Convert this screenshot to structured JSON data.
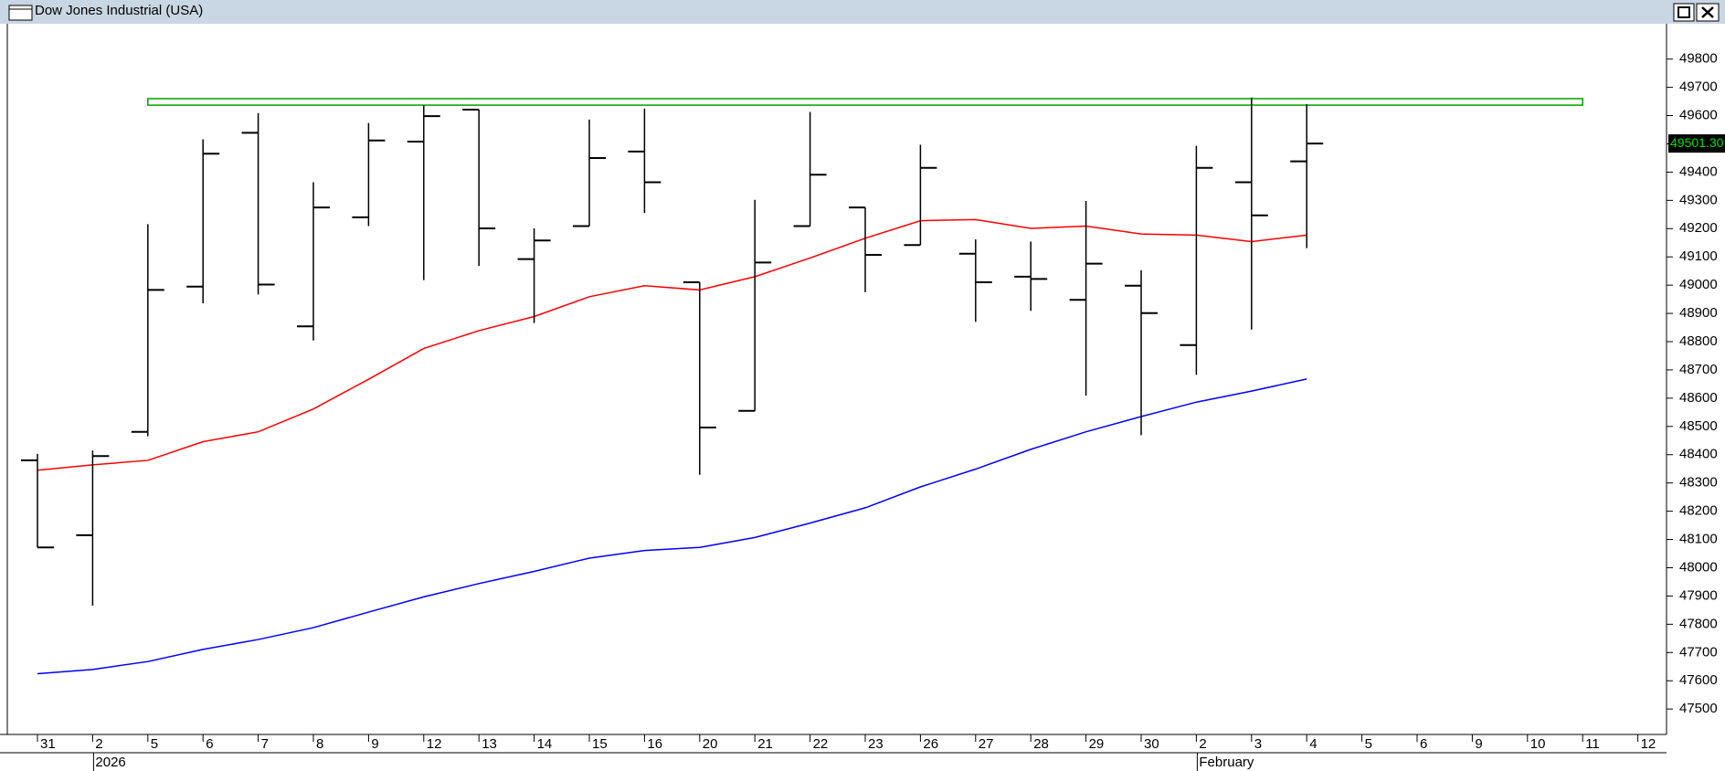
{
  "chart_data": {
    "type": "ohlc",
    "title": "Dow Jones Industrial (USA)",
    "categories": [
      "31",
      "2",
      "5",
      "6",
      "7",
      "8",
      "9",
      "12",
      "13",
      "14",
      "15",
      "16",
      "20",
      "21",
      "22",
      "23",
      "26",
      "27",
      "28",
      "29",
      "30",
      "2",
      "3",
      "4",
      "5",
      "6",
      "9",
      "10",
      "11",
      "12"
    ],
    "categories_row2": [
      null,
      "2026",
      null,
      null,
      null,
      null,
      null,
      null,
      null,
      null,
      null,
      null,
      null,
      null,
      null,
      null,
      null,
      null,
      null,
      null,
      null,
      "February",
      null,
      null,
      null,
      null,
      null,
      null,
      null,
      null
    ],
    "open": [
      48380,
      48115,
      48481,
      48995,
      49539,
      48854,
      49240,
      49508,
      49621,
      49092,
      49209,
      49473,
      49010,
      48555,
      49209,
      49275,
      49142,
      49111,
      49030,
      48948,
      48998,
      48788,
      49364,
      49438,
      null,
      null,
      null,
      null,
      null,
      null
    ],
    "high": [
      48403,
      48415,
      49216,
      49516,
      49609,
      49364,
      49574,
      49637,
      49621,
      49201,
      49586,
      49625,
      49010,
      49302,
      49613,
      49275,
      49497,
      49162,
      49154,
      49298,
      49053,
      49493,
      49664,
      49640,
      null,
      null,
      null,
      null,
      null,
      null
    ],
    "low": [
      48072,
      47866,
      48465,
      48936,
      48967,
      48804,
      49209,
      49018,
      49068,
      48866,
      49209,
      49255,
      48329,
      48555,
      49209,
      48975,
      49142,
      48870,
      48909,
      48609,
      48469,
      48683,
      48843,
      49131,
      null,
      null,
      null,
      null,
      null,
      null
    ],
    "close": [
      48072,
      48395,
      48983,
      49465,
      49002,
      49275,
      49512,
      49598,
      49201,
      49158,
      49450,
      49364,
      48496,
      49080,
      49391,
      49107,
      49415,
      49010,
      49022,
      49076,
      48901,
      49415,
      49247,
      49501.3,
      null,
      null,
      null,
      null,
      null,
      null
    ],
    "close_label": "49501.30",
    "color": "#000000",
    "lines": [
      {
        "color": "#ff0000",
        "values": [
          48345,
          48364,
          48380,
          48446,
          48481,
          48562,
          48667,
          48776,
          48839,
          48889,
          48959,
          48998,
          48983,
          49030,
          49096,
          49166,
          49228,
          49232,
          49201,
          49209,
          49181,
          49177,
          49154,
          49177,
          null,
          null,
          null,
          null,
          null,
          null
        ]
      },
      {
        "color": "#0000ff",
        "values": [
          47625,
          47640,
          47668,
          47711,
          47746,
          47788,
          47843,
          47897,
          47944,
          47987,
          48034,
          48061,
          48072,
          48107,
          48158,
          48212,
          48286,
          48349,
          48419,
          48481,
          48535,
          48586,
          48625,
          48668,
          null,
          null,
          null,
          null,
          null,
          null
        ]
      }
    ],
    "band": [
      49637,
      49660
    ],
    "band_color": "#00a000",
    "ylim": [
      47410,
      49925
    ],
    "yticks": [
      47500,
      47600,
      47700,
      47800,
      47900,
      48000,
      48100,
      48200,
      48300,
      48400,
      48500,
      48600,
      48700,
      48800,
      48900,
      49000,
      49100,
      49200,
      49300,
      49400,
      49500,
      49600,
      49700,
      49800
    ]
  }
}
